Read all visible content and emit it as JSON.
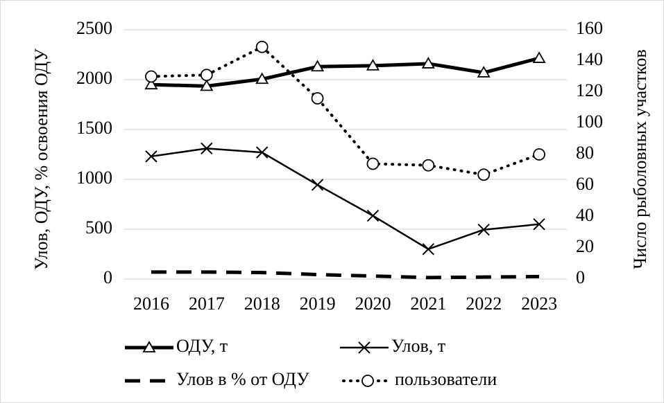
{
  "chart_data": {
    "type": "line",
    "categories": [
      "2016",
      "2017",
      "2018",
      "2019",
      "2020",
      "2021",
      "2022",
      "2023"
    ],
    "ylabel": "Улов, ОДУ, % освоения ОДУ",
    "y2label": "Число рыболовных участков",
    "ylim": [
      0,
      2500
    ],
    "yticks": [
      0,
      500,
      1000,
      1500,
      2000,
      2500
    ],
    "y2lim": [
      0,
      160
    ],
    "y2ticks": [
      0,
      20,
      40,
      60,
      80,
      100,
      120,
      140,
      160
    ],
    "grid": true,
    "series": [
      {
        "name": "ОДУ, т",
        "color": "#000000",
        "line_style": "solid",
        "line_width": 5,
        "marker": "triangle",
        "values": [
          1950,
          1935,
          2005,
          2130,
          2140,
          2160,
          2070,
          2215
        ]
      },
      {
        "name": "Улов, т",
        "color": "#000000",
        "line_style": "solid",
        "line_width": 2.5,
        "marker": "x",
        "values": [
          1230,
          1310,
          1270,
          945,
          635,
          300,
          495,
          550
        ]
      },
      {
        "name": "Улов в % от ОДУ",
        "color": "#000000",
        "line_style": "dashed",
        "line_width": 5,
        "marker": "none",
        "values": [
          70,
          70,
          65,
          45,
          30,
          15,
          20,
          25
        ]
      },
      {
        "name": "пользователи",
        "color": "#000000",
        "line_style": "dotted",
        "line_width": 4,
        "marker": "circle",
        "axis": "y2",
        "values": [
          130,
          131,
          149,
          116,
          74,
          73,
          67,
          80
        ]
      }
    ]
  }
}
